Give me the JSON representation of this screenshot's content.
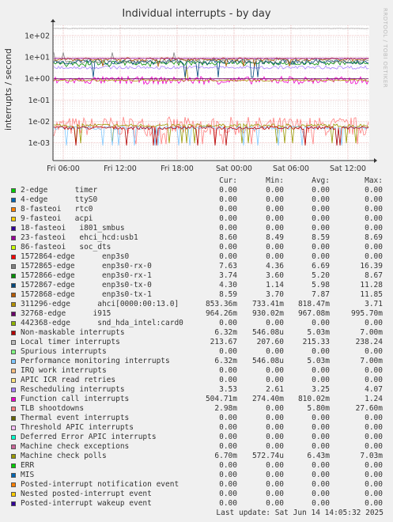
{
  "title": "Individual interrupts - by day",
  "watermark": "RRDTOOL / TOBI OETIKER",
  "y_axis_label": "interrupts / second",
  "columns": {
    "cur": "Cur:",
    "min": "Min:",
    "avg": "Avg:",
    "max": "Max:"
  },
  "last_update": "Last update: Sat Jun 14 14:05:32 2025",
  "chart_data": {
    "type": "line",
    "title": "Individual interrupts - by day",
    "ylabel": "interrupts / second",
    "yscale": "log",
    "ylim": [
      0.00015,
      300
    ],
    "y_ticks": [
      "1e+02",
      "1e+01",
      "1e+00",
      "1e-01",
      "1e-02",
      "1e-03"
    ],
    "x_ticks": [
      "Fri 06:00",
      "Fri 12:00",
      "Fri 18:00",
      "Sat 00:00",
      "Sat 06:00",
      "Sat 12:00"
    ],
    "series": [
      {
        "name": "2-edge      timer",
        "color": "#00cc00",
        "cur": "0.00",
        "min": "0.00",
        "avg": "0.00",
        "max": "0.00"
      },
      {
        "name": "4-edge      ttyS0",
        "color": "#0066b3",
        "cur": "0.00",
        "min": "0.00",
        "avg": "0.00",
        "max": "0.00"
      },
      {
        "name": "8-fasteoi   rtc0",
        "color": "#ff8000",
        "cur": "0.00",
        "min": "0.00",
        "avg": "0.00",
        "max": "0.00"
      },
      {
        "name": "9-fasteoi   acpi",
        "color": "#ffcc00",
        "cur": "0.00",
        "min": "0.00",
        "avg": "0.00",
        "max": "0.00"
      },
      {
        "name": "18-fasteoi   i801_smbus",
        "color": "#330099",
        "cur": "0.00",
        "min": "0.00",
        "avg": "0.00",
        "max": "0.00"
      },
      {
        "name": "23-fasteoi   ehci_hcd:usb1",
        "color": "#990099",
        "cur": "8.60",
        "min": "8.49",
        "avg": "8.59",
        "max": "8.69"
      },
      {
        "name": "86-fasteoi   soc_dts",
        "color": "#ccff00",
        "cur": "0.00",
        "min": "0.00",
        "avg": "0.00",
        "max": "0.00"
      },
      {
        "name": "1572864-edge      enp3s0",
        "color": "#ff0000",
        "cur": "0.00",
        "min": "0.00",
        "avg": "0.00",
        "max": "0.00"
      },
      {
        "name": "1572865-edge      enp3s0-rx-0",
        "color": "#808080",
        "cur": "7.63",
        "min": "4.36",
        "avg": "6.69",
        "max": "16.39"
      },
      {
        "name": "1572866-edge      enp3s0-rx-1",
        "color": "#008f00",
        "cur": "3.74",
        "min": "3.60",
        "avg": "5.20",
        "max": "8.67"
      },
      {
        "name": "1572867-edge      enp3s0-tx-0",
        "color": "#00487d",
        "cur": "4.30",
        "min": "1.14",
        "avg": "5.98",
        "max": "11.28"
      },
      {
        "name": "1572868-edge      enp3s0-tx-1",
        "color": "#b35a00",
        "cur": "8.59",
        "min": "3.70",
        "avg": "7.87",
        "max": "11.85"
      },
      {
        "name": "311296-edge      ahci[0000:00:13.0]",
        "color": "#b38f00",
        "cur": "853.36m",
        "min": "733.41m",
        "avg": "818.47m",
        "max": "3.71"
      },
      {
        "name": "32768-edge      i915",
        "color": "#6b006b",
        "cur": "964.26m",
        "min": "930.02m",
        "avg": "967.08m",
        "max": "995.70m"
      },
      {
        "name": "442368-edge      snd_hda_intel:card0",
        "color": "#8fb300",
        "cur": "0.00",
        "min": "0.00",
        "avg": "0.00",
        "max": "0.00"
      },
      {
        "name": "Non-maskable interrupts",
        "color": "#b30000",
        "cur": "6.32m",
        "min": "546.08u",
        "avg": "5.03m",
        "max": "7.00m"
      },
      {
        "name": "Local timer interrupts",
        "color": "#bebebe",
        "cur": "213.67",
        "min": "207.60",
        "avg": "215.33",
        "max": "238.24"
      },
      {
        "name": "Spurious interrupts",
        "color": "#80ff80",
        "cur": "0.00",
        "min": "0.00",
        "avg": "0.00",
        "max": "0.00"
      },
      {
        "name": "Performance monitoring interrupts",
        "color": "#80c9ff",
        "cur": "6.32m",
        "min": "546.08u",
        "avg": "5.03m",
        "max": "7.00m"
      },
      {
        "name": "IRQ work interrupts",
        "color": "#ffc080",
        "cur": "0.00",
        "min": "0.00",
        "avg": "0.00",
        "max": "0.00"
      },
      {
        "name": "APIC ICR read retries",
        "color": "#ffe680",
        "cur": "0.00",
        "min": "0.00",
        "avg": "0.00",
        "max": "0.00"
      },
      {
        "name": "Rescheduling interrupts",
        "color": "#aa80ff",
        "cur": "3.53",
        "min": "2.61",
        "avg": "3.25",
        "max": "4.07"
      },
      {
        "name": "Function call interrupts",
        "color": "#ee00cc",
        "cur": "504.71m",
        "min": "274.40m",
        "avg": "810.02m",
        "max": "1.24"
      },
      {
        "name": "TLB shootdowns",
        "color": "#ff8080",
        "cur": "2.98m",
        "min": "0.00",
        "avg": "5.80m",
        "max": "27.60m"
      },
      {
        "name": "Thermal event interrupts",
        "color": "#666600",
        "cur": "0.00",
        "min": "0.00",
        "avg": "0.00",
        "max": "0.00"
      },
      {
        "name": "Threshold APIC interrupts",
        "color": "#ffbfff",
        "cur": "0.00",
        "min": "0.00",
        "avg": "0.00",
        "max": "0.00"
      },
      {
        "name": "Deferred Error APIC interrupts",
        "color": "#00ffcc",
        "cur": "0.00",
        "min": "0.00",
        "avg": "0.00",
        "max": "0.00"
      },
      {
        "name": "Machine check exceptions",
        "color": "#cc6699",
        "cur": "0.00",
        "min": "0.00",
        "avg": "0.00",
        "max": "0.00"
      },
      {
        "name": "Machine check polls",
        "color": "#999900",
        "cur": "6.70m",
        "min": "572.74u",
        "avg": "6.43m",
        "max": "7.03m"
      },
      {
        "name": "ERR",
        "color": "#00cc00",
        "cur": "0.00",
        "min": "0.00",
        "avg": "0.00",
        "max": "0.00"
      },
      {
        "name": "MIS",
        "color": "#0066b3",
        "cur": "0.00",
        "min": "0.00",
        "avg": "0.00",
        "max": "0.00"
      },
      {
        "name": "Posted-interrupt notification event",
        "color": "#ff8000",
        "cur": "0.00",
        "min": "0.00",
        "avg": "0.00",
        "max": "0.00"
      },
      {
        "name": "Nested posted-interrupt event",
        "color": "#ffcc00",
        "cur": "0.00",
        "min": "0.00",
        "avg": "0.00",
        "max": "0.00"
      },
      {
        "name": "Posted-interrupt wakeup event",
        "color": "#330099",
        "cur": "0.00",
        "min": "0.00",
        "avg": "0.00",
        "max": "0.00"
      }
    ]
  }
}
